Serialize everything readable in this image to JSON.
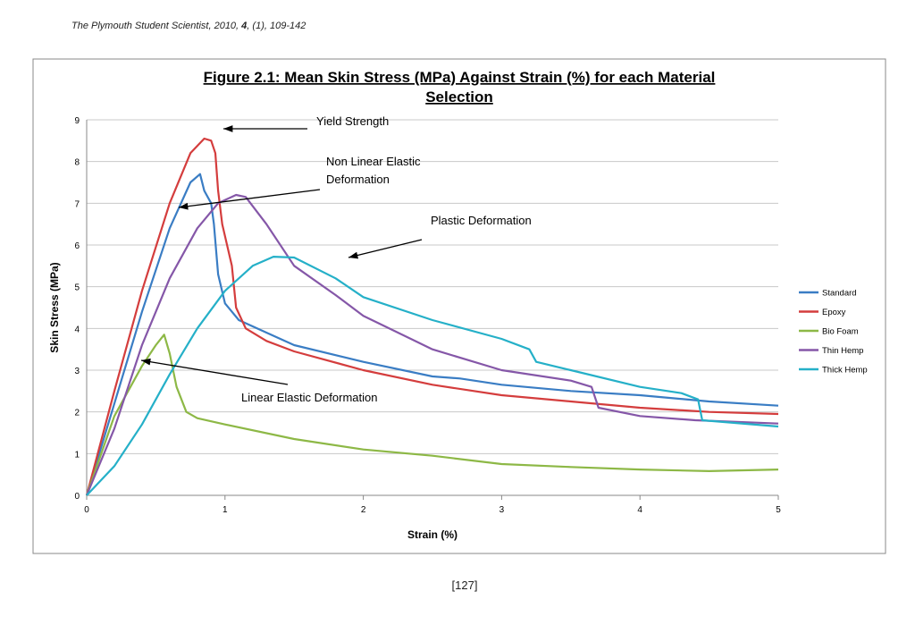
{
  "header": {
    "journal": "The Plymouth Student Scientist, 2010, ",
    "volume": "4",
    "rest": ", (1), 109-142"
  },
  "page_number": "[127]",
  "chart_data": {
    "type": "line",
    "title_line1": "Figure 2.1: Mean Skin Stress (MPa) Against Strain (%) for each Material",
    "title_line2": "Selection",
    "xlabel": "Strain (%)",
    "ylabel": "Skin Stress (MPa)",
    "xlim": [
      0,
      5
    ],
    "ylim": [
      0,
      9
    ],
    "xticks": [
      "0",
      "1",
      "2",
      "3",
      "4",
      "5"
    ],
    "yticks": [
      "0",
      "1",
      "2",
      "3",
      "4",
      "5",
      "6",
      "7",
      "8",
      "9"
    ],
    "grid": "horizontal",
    "legend": "right",
    "series": [
      {
        "name": "Standard",
        "color": "#3a7dc4",
        "points": [
          [
            0,
            0
          ],
          [
            0.2,
            2.2
          ],
          [
            0.4,
            4.4
          ],
          [
            0.6,
            6.4
          ],
          [
            0.75,
            7.5
          ],
          [
            0.82,
            7.7
          ],
          [
            0.85,
            7.3
          ],
          [
            0.9,
            7.0
          ],
          [
            0.92,
            6.5
          ],
          [
            0.95,
            5.3
          ],
          [
            1.0,
            4.6
          ],
          [
            1.1,
            4.2
          ],
          [
            1.3,
            3.9
          ],
          [
            1.5,
            3.6
          ],
          [
            2.0,
            3.2
          ],
          [
            2.5,
            2.85
          ],
          [
            2.7,
            2.8
          ],
          [
            3.0,
            2.65
          ],
          [
            3.5,
            2.5
          ],
          [
            4.0,
            2.4
          ],
          [
            4.5,
            2.25
          ],
          [
            5,
            2.15
          ]
        ]
      },
      {
        "name": "Epoxy",
        "color": "#d43d3d",
        "points": [
          [
            0,
            0
          ],
          [
            0.2,
            2.5
          ],
          [
            0.4,
            4.9
          ],
          [
            0.6,
            7.0
          ],
          [
            0.75,
            8.2
          ],
          [
            0.85,
            8.55
          ],
          [
            0.9,
            8.5
          ],
          [
            0.93,
            8.2
          ],
          [
            0.95,
            7.3
          ],
          [
            0.98,
            6.5
          ],
          [
            1.05,
            5.5
          ],
          [
            1.08,
            4.5
          ],
          [
            1.15,
            4.0
          ],
          [
            1.3,
            3.7
          ],
          [
            1.5,
            3.45
          ],
          [
            2,
            3.0
          ],
          [
            2.5,
            2.65
          ],
          [
            3,
            2.4
          ],
          [
            3.5,
            2.25
          ],
          [
            4,
            2.1
          ],
          [
            4.5,
            2.0
          ],
          [
            5,
            1.95
          ]
        ]
      },
      {
        "name": "Bio Foam",
        "color": "#8db846",
        "points": [
          [
            0,
            0
          ],
          [
            0.2,
            1.9
          ],
          [
            0.4,
            3.1
          ],
          [
            0.5,
            3.6
          ],
          [
            0.56,
            3.85
          ],
          [
            0.6,
            3.4
          ],
          [
            0.65,
            2.6
          ],
          [
            0.72,
            2.0
          ],
          [
            0.8,
            1.85
          ],
          [
            1,
            1.7
          ],
          [
            1.5,
            1.35
          ],
          [
            2,
            1.1
          ],
          [
            2.5,
            0.95
          ],
          [
            3,
            0.75
          ],
          [
            3.5,
            0.68
          ],
          [
            4,
            0.62
          ],
          [
            4.5,
            0.58
          ],
          [
            5,
            0.62
          ]
        ]
      },
      {
        "name": "Thin Hemp",
        "color": "#8557a8",
        "points": [
          [
            0,
            0
          ],
          [
            0.2,
            1.6
          ],
          [
            0.4,
            3.6
          ],
          [
            0.6,
            5.2
          ],
          [
            0.8,
            6.4
          ],
          [
            0.95,
            7.0
          ],
          [
            1.08,
            7.2
          ],
          [
            1.15,
            7.15
          ],
          [
            1.3,
            6.5
          ],
          [
            1.5,
            5.5
          ],
          [
            1.8,
            4.8
          ],
          [
            2,
            4.3
          ],
          [
            2.5,
            3.5
          ],
          [
            3,
            3.0
          ],
          [
            3.5,
            2.75
          ],
          [
            3.65,
            2.6
          ],
          [
            3.7,
            2.1
          ],
          [
            4,
            1.9
          ],
          [
            4.4,
            1.8
          ],
          [
            5,
            1.72
          ]
        ]
      },
      {
        "name": "Thick Hemp",
        "color": "#25b0c8",
        "points": [
          [
            0,
            0
          ],
          [
            0.2,
            0.7
          ],
          [
            0.4,
            1.7
          ],
          [
            0.6,
            2.9
          ],
          [
            0.8,
            4.0
          ],
          [
            1,
            4.9
          ],
          [
            1.2,
            5.5
          ],
          [
            1.35,
            5.72
          ],
          [
            1.5,
            5.7
          ],
          [
            1.8,
            5.2
          ],
          [
            2,
            4.75
          ],
          [
            2.5,
            4.2
          ],
          [
            3,
            3.75
          ],
          [
            3.2,
            3.5
          ],
          [
            3.25,
            3.2
          ],
          [
            3.5,
            3.0
          ],
          [
            4,
            2.6
          ],
          [
            4.3,
            2.45
          ],
          [
            4.42,
            2.3
          ],
          [
            4.45,
            1.8
          ],
          [
            5,
            1.65
          ]
        ]
      }
    ],
    "annotations": [
      {
        "lines": [
          "Yield Strength"
        ]
      },
      {
        "lines": [
          "Non Linear Elastic",
          "Deformation"
        ]
      },
      {
        "lines": [
          "Plastic Deformation"
        ]
      },
      {
        "lines": [
          "Linear Elastic Deformation"
        ]
      }
    ]
  }
}
